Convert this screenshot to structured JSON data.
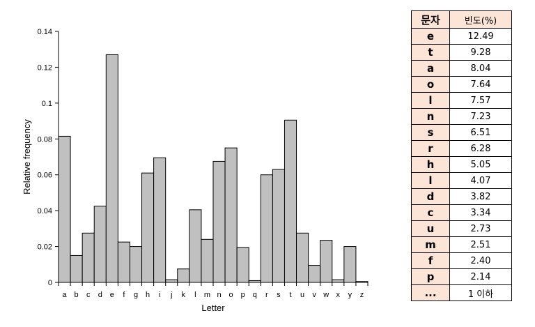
{
  "chart_data": {
    "type": "bar",
    "categories": [
      "a",
      "b",
      "c",
      "d",
      "e",
      "f",
      "g",
      "h",
      "i",
      "j",
      "k",
      "l",
      "m",
      "n",
      "o",
      "p",
      "q",
      "r",
      "s",
      "t",
      "u",
      "v",
      "w",
      "x",
      "y",
      "z"
    ],
    "values": [
      0.0815,
      0.015,
      0.0275,
      0.0425,
      0.127,
      0.0225,
      0.02,
      0.061,
      0.0695,
      0.0015,
      0.0075,
      0.0405,
      0.024,
      0.0675,
      0.075,
      0.0195,
      0.001,
      0.06,
      0.063,
      0.0905,
      0.0275,
      0.0095,
      0.0235,
      0.0015,
      0.02,
      0.0005
    ],
    "xlabel": "Letter",
    "ylabel": "Relative frequency",
    "ylim": [
      0,
      0.14
    ],
    "yticks": [
      "0",
      "0.02",
      "0.04",
      "0.06",
      "0.08",
      "0.1",
      "0.12",
      "0.14"
    ],
    "grid": false,
    "colors": {
      "bar_fill": "#c0c0c0",
      "bar_stroke": "#000000"
    }
  },
  "table": {
    "headers": [
      "문자",
      "빈도(%)"
    ],
    "rows": [
      [
        "e",
        "12.49"
      ],
      [
        "t",
        "9.28"
      ],
      [
        "a",
        "8.04"
      ],
      [
        "o",
        "7.64"
      ],
      [
        "l",
        "7.57"
      ],
      [
        "n",
        "7.23"
      ],
      [
        "s",
        "6.51"
      ],
      [
        "r",
        "6.28"
      ],
      [
        "h",
        "5.05"
      ],
      [
        "l",
        "4.07"
      ],
      [
        "d",
        "3.82"
      ],
      [
        "c",
        "3.34"
      ],
      [
        "u",
        "2.73"
      ],
      [
        "m",
        "2.51"
      ],
      [
        "f",
        "2.40"
      ],
      [
        "p",
        "2.14"
      ],
      [
        "...",
        "1 이하"
      ]
    ],
    "colors": {
      "header_bg": "#fce4d6",
      "letter_bg": "#fce4d6"
    }
  }
}
